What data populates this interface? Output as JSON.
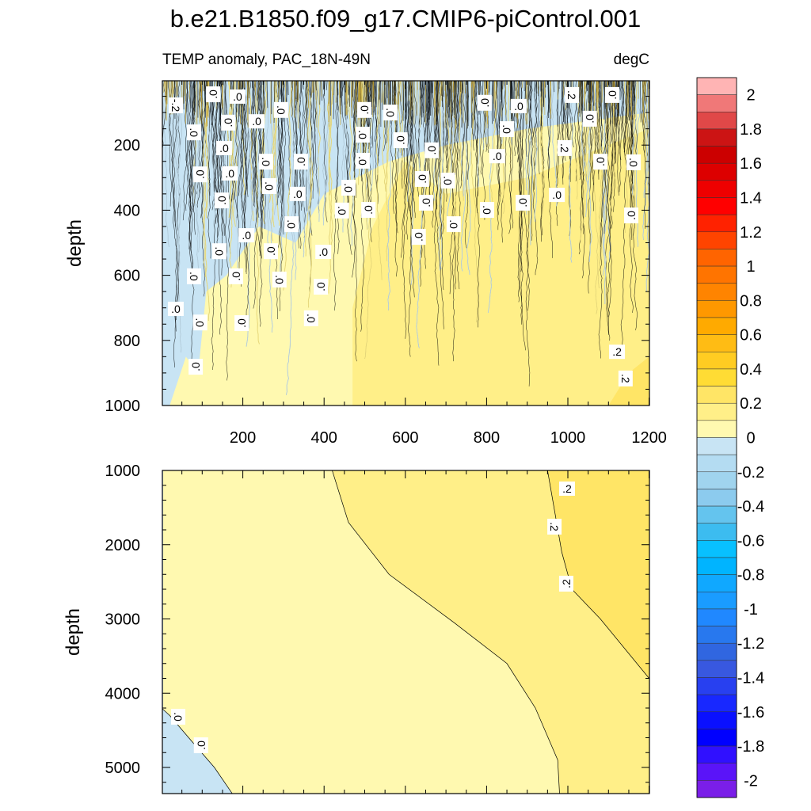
{
  "chart_data": [
    {
      "type": "heatmap",
      "title": "b.e21.B1850.f09_g17.CMIP6-piControl.001",
      "subtitle_left": "TEMP anomaly, PAC_18N-49N",
      "subtitle_right": "degC",
      "ylabel": "depth",
      "xlim": [
        0,
        1200
      ],
      "ylim": [
        1000,
        0
      ],
      "x_ticks": [
        "200",
        "400",
        "600",
        "800",
        "1000",
        "1200"
      ],
      "y_ticks": [
        "200",
        "400",
        "600",
        "800",
        "1000"
      ],
      "contour_labels": [
        {
          "text": "-.2",
          "x": 35,
          "depth": 78
        },
        {
          "text": ".0",
          "x": 127,
          "depth": 44
        },
        {
          "text": ".0",
          "x": 187,
          "depth": 51
        },
        {
          "text": ".0",
          "x": 294,
          "depth": 92
        },
        {
          "text": ".0",
          "x": 499,
          "depth": 92
        },
        {
          "text": ".0",
          "x": 563,
          "depth": 100
        },
        {
          "text": ".0",
          "x": 795,
          "depth": 70
        },
        {
          "text": ".0",
          "x": 879,
          "depth": 80
        },
        {
          "text": ".2",
          "x": 1010,
          "depth": 46
        },
        {
          "text": ".0",
          "x": 1109,
          "depth": 46
        },
        {
          "text": ".0",
          "x": 80,
          "depth": 161
        },
        {
          "text": ".0",
          "x": 164,
          "depth": 131
        },
        {
          "text": ".0",
          "x": 234,
          "depth": 127
        },
        {
          "text": ".0",
          "x": 495,
          "depth": 168
        },
        {
          "text": ".0",
          "x": 588,
          "depth": 185
        },
        {
          "text": ".0",
          "x": 850,
          "depth": 151
        },
        {
          "text": ".0",
          "x": 1054,
          "depth": 119
        },
        {
          "text": ".0",
          "x": 154,
          "depth": 209
        },
        {
          "text": ".0",
          "x": 257,
          "depth": 251
        },
        {
          "text": ".0",
          "x": 343,
          "depth": 251
        },
        {
          "text": ".0",
          "x": 495,
          "depth": 248
        },
        {
          "text": ".0",
          "x": 665,
          "depth": 216
        },
        {
          "text": ".0",
          "x": 826,
          "depth": 234
        },
        {
          "text": ".2",
          "x": 992,
          "depth": 209
        },
        {
          "text": ".0",
          "x": 1080,
          "depth": 251
        },
        {
          "text": ".0",
          "x": 1162,
          "depth": 253
        },
        {
          "text": ".0",
          "x": 95,
          "depth": 290
        },
        {
          "text": ".0",
          "x": 168,
          "depth": 287
        },
        {
          "text": ".0",
          "x": 265,
          "depth": 326
        },
        {
          "text": ".0",
          "x": 641,
          "depth": 304
        },
        {
          "text": ".0",
          "x": 705,
          "depth": 309
        },
        {
          "text": ".0",
          "x": 148,
          "depth": 370
        },
        {
          "text": ".0",
          "x": 335,
          "depth": 350
        },
        {
          "text": ".0",
          "x": 460,
          "depth": 331
        },
        {
          "text": ".0",
          "x": 651,
          "depth": 377
        },
        {
          "text": ".0",
          "x": 801,
          "depth": 399
        },
        {
          "text": ".0",
          "x": 889,
          "depth": 377
        },
        {
          "text": ".0",
          "x": 973,
          "depth": 353
        },
        {
          "text": ".0",
          "x": 444,
          "depth": 401
        },
        {
          "text": ".0",
          "x": 509,
          "depth": 399
        },
        {
          "text": ".0",
          "x": 719,
          "depth": 443
        },
        {
          "text": ".0",
          "x": 1156,
          "depth": 416
        },
        {
          "text": ".0",
          "x": 209,
          "depth": 477
        },
        {
          "text": ".0",
          "x": 320,
          "depth": 443
        },
        {
          "text": ".0",
          "x": 633,
          "depth": 482
        },
        {
          "text": ".0",
          "x": 142,
          "depth": 526
        },
        {
          "text": ".0",
          "x": 269,
          "depth": 526
        },
        {
          "text": ".0",
          "x": 398,
          "depth": 528
        },
        {
          "text": ".0",
          "x": 80,
          "depth": 603
        },
        {
          "text": ".0",
          "x": 183,
          "depth": 603
        },
        {
          "text": ".0",
          "x": 290,
          "depth": 613
        },
        {
          "text": ".0",
          "x": 392,
          "depth": 635
        },
        {
          "text": ".0",
          "x": 35,
          "depth": 703
        },
        {
          "text": ".0",
          "x": 95,
          "depth": 745
        },
        {
          "text": ".0",
          "x": 197,
          "depth": 747
        },
        {
          "text": ".0",
          "x": 368,
          "depth": 732
        },
        {
          "text": ".0",
          "x": 84,
          "depth": 881
        },
        {
          "text": ".2",
          "x": 1121,
          "depth": 835
        },
        {
          "text": ".2",
          "x": 1142,
          "depth": 917
        }
      ]
    },
    {
      "type": "heatmap",
      "ylabel": "depth",
      "xlim": [
        0,
        1200
      ],
      "ylim": [
        5350,
        1000
      ],
      "y_ticks": [
        "1000",
        "2000",
        "3000",
        "4000",
        "5000"
      ],
      "contour_labels": [
        {
          "text": ".0",
          "x": 41,
          "depth": 4317
        },
        {
          "text": ".0",
          "x": 97,
          "depth": 4701
        },
        {
          "text": ".2",
          "x": 998,
          "depth": 1245
        },
        {
          "text": ".2",
          "x": 967,
          "depth": 1757
        },
        {
          "text": ".2",
          "x": 996,
          "depth": 2525
        }
      ]
    }
  ],
  "colorbar": {
    "labels": [
      "2",
      "1.8",
      "1.6",
      "1.4",
      "1.2",
      "1",
      "0.8",
      "0.6",
      "0.4",
      "0.2",
      "0",
      "-0.2",
      "-0.4",
      "-0.6",
      "-0.8",
      "-1",
      "-1.2",
      "-1.4",
      "-1.6",
      "-1.8",
      "-2"
    ],
    "colors": [
      "#ffb4b4",
      "#f07878",
      "#e04848",
      "#cc1414",
      "#cc0000",
      "#dd0000",
      "#ee0000",
      "#ff0000",
      "#ff2200",
      "#ff4400",
      "#ff6400",
      "#ff7400",
      "#ff8400",
      "#ff9800",
      "#ffaa00",
      "#ffbc14",
      "#ffcc22",
      "#ffdc34",
      "#ffe566",
      "#ffef88",
      "#fff9b0",
      "#c8e4f4",
      "#b4dcf2",
      "#a0d4ee",
      "#8ccbee",
      "#64c4ee",
      "#3cbcf0",
      "#08c0ff",
      "#00b4ff",
      "#10a8ff",
      "#1a9cff",
      "#2088ff",
      "#2878ee",
      "#3066e0",
      "#3858e0",
      "#2840f0",
      "#1828ff",
      "#0a10ff",
      "#0000ff",
      "#3010ff",
      "#5a14f8",
      "#7a1ee8"
    ]
  }
}
